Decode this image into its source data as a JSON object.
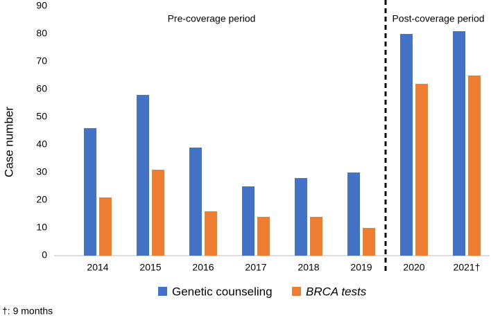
{
  "chart_data": {
    "type": "bar",
    "y_label": "Case number",
    "categories": [
      "2014",
      "2015",
      "2016",
      "2017",
      "2018",
      "2019",
      "2020",
      "2021†"
    ],
    "series": [
      {
        "name": "Genetic counseling",
        "color": "#4472c4",
        "values": [
          46,
          58,
          39,
          25,
          28,
          30,
          80,
          81
        ]
      },
      {
        "name": "BRCA tests",
        "color": "#ed7d31",
        "values": [
          21,
          31,
          16,
          14,
          14,
          10,
          62,
          65
        ]
      }
    ],
    "ylim": [
      0,
      90
    ],
    "yticks": [
      0,
      10,
      20,
      30,
      40,
      50,
      60,
      70,
      80,
      90
    ],
    "grid": false,
    "annotations": [
      "Pre-coverage period",
      "Post-coverage period"
    ],
    "footnote": "†: 9 months"
  }
}
